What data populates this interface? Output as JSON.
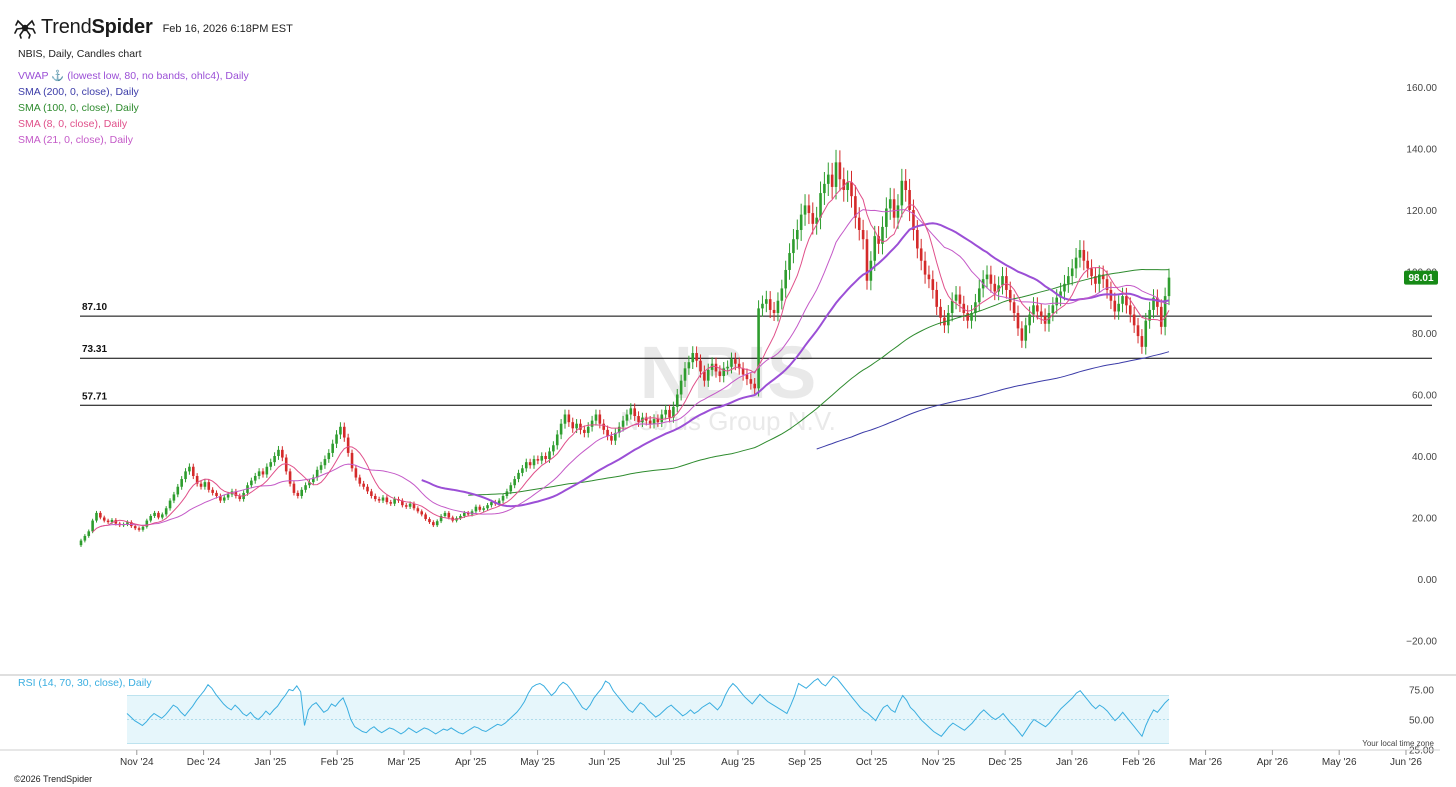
{
  "header": {
    "brand_light": "Trend",
    "brand_bold_part": "Spider",
    "datetime": "Feb 16, 2026 6:18PM EST"
  },
  "chart_title": "NBIS, Daily, Candles chart",
  "indicators": [
    {
      "label": "VWAP ⚓ (lowest low, 80, no bands, ohlc4), Daily",
      "color": "#9b4fd6"
    },
    {
      "label": "SMA (200, 0, close), Daily",
      "color": "#3c3ca8"
    },
    {
      "label": "SMA (100, 0, close), Daily",
      "color": "#2e8b2e"
    },
    {
      "label": "SMA (8, 0, close), Daily",
      "color": "#e0508a"
    },
    {
      "label": "SMA (21, 0, close), Daily",
      "color": "#c45ac8"
    }
  ],
  "watermark": {
    "symbol": "NBIS",
    "name": "Nebius Group N.V."
  },
  "price_badge": "98.01",
  "rsi_label": "RSI (14, 70, 30, close), Daily",
  "footer": "©2026 TrendSpider",
  "timezone_note": "Your local time zone",
  "colors": {
    "up": "#2e9d2e",
    "down": "#d42a2a",
    "rsi": "#3aaee0",
    "rsi_band": "#e6f6fb",
    "badge": "#168a16"
  },
  "chart_data": {
    "type": "candlestick",
    "y_ticks": [
      160,
      140,
      120,
      100,
      80,
      60,
      40,
      20,
      0,
      -20
    ],
    "y_tick_labels": [
      "160.00",
      "140.00",
      "120.00",
      "100.00",
      "80.00",
      "60.00",
      "40.00",
      "20.00",
      "0.00",
      "−20.00"
    ],
    "x_labels": [
      "Nov '24",
      "Dec '24",
      "Jan '25",
      "Feb '25",
      "Mar '25",
      "Apr '25",
      "May '25",
      "Jun '25",
      "Jul '25",
      "Aug '25",
      "Sep '25",
      "Oct '25",
      "Nov '25",
      "Dec '25",
      "Jan '26",
      "Feb '26",
      "Mar '26",
      "Apr '26",
      "May '26",
      "Jun '26"
    ],
    "x_label_months": [
      0,
      1,
      2,
      3,
      4,
      5,
      6,
      7,
      8,
      9,
      10,
      11,
      12,
      13,
      14,
      15,
      16,
      17,
      18,
      19
    ],
    "first_month_offset": 0.85,
    "horizontal_levels": [
      {
        "label": "87.10",
        "value": 85.5
      },
      {
        "label": "73.31",
        "value": 71.8
      },
      {
        "label": "57.71",
        "value": 56.5
      }
    ],
    "last_price": 98.01,
    "rsi_ticks": [
      75,
      50,
      25
    ],
    "rsi_tick_labels": [
      "75.00",
      "50.00",
      "25.00"
    ],
    "rsi_band": [
      30,
      70
    ],
    "closes": [
      12.5,
      14,
      15.5,
      19,
      21.5,
      20,
      19,
      18.5,
      19.2,
      18,
      17.5,
      17.8,
      18.5,
      17.2,
      16.5,
      16,
      17,
      19,
      20.5,
      21.5,
      20,
      21,
      23,
      25.5,
      27.5,
      30,
      32.5,
      35,
      36.5,
      33.5,
      31,
      30,
      31.5,
      29,
      28,
      27,
      25.5,
      26.5,
      27.5,
      28.5,
      27,
      26,
      28,
      30.5,
      32,
      33.5,
      35,
      34,
      36.5,
      38,
      40,
      42,
      39.5,
      35,
      31,
      28,
      27,
      29,
      30.5,
      31.5,
      33,
      35.5,
      37,
      39,
      41,
      44,
      47,
      49.5,
      46,
      41,
      36,
      33,
      31,
      30,
      28.5,
      27,
      26,
      25.5,
      26.5,
      25,
      24.5,
      26,
      25.5,
      24,
      23.5,
      24.5,
      23,
      22,
      21,
      19.5,
      18.5,
      17.5,
      18.8,
      20.5,
      21.5,
      20,
      19,
      19.8,
      20.5,
      21.5,
      21,
      22,
      23.5,
      22.5,
      23,
      24,
      25,
      24.5,
      25.5,
      27,
      28.5,
      30.5,
      32.5,
      34.5,
      36,
      38,
      37,
      39,
      38.5,
      40,
      39,
      41.5,
      43.5,
      47,
      50.5,
      53.5,
      51,
      49,
      50.5,
      48.5,
      47.5,
      49.5,
      51.5,
      53.5,
      50.5,
      48.5,
      46.5,
      45,
      47.5,
      49.5,
      51.5,
      53.5,
      55.5,
      53,
      51,
      52.5,
      51.5,
      50.5,
      52,
      51,
      53.5,
      55,
      52.5,
      56,
      60,
      64.5,
      68.5,
      70.5,
      73.5,
      71,
      67.5,
      64.5,
      68,
      70,
      67.5,
      66,
      68.5,
      69,
      71.5,
      70,
      68.5,
      66.5,
      65,
      63.5,
      62,
      88,
      89.5,
      91,
      87.5,
      86.5,
      90.5,
      94.5,
      100.5,
      106,
      110.5,
      113.5,
      118.5,
      121.5,
      119,
      115.5,
      117.5,
      125.5,
      128.5,
      131.5,
      127.5,
      135.5,
      130,
      126.5,
      129,
      124.5,
      117.5,
      113.5,
      110.5,
      97,
      103.5,
      111.5,
      109,
      114.5,
      120.5,
      123.5,
      117.5,
      121.5,
      129.5,
      126.5,
      120,
      113.5,
      107.5,
      103.5,
      99,
      97.5,
      94,
      88.5,
      85,
      82.5,
      86.5,
      90.5,
      92.5,
      89.5,
      86.5,
      84,
      86.5,
      90,
      94.5,
      97.5,
      99,
      96,
      93.5,
      95.5,
      98.5,
      94,
      90,
      86.5,
      81.5,
      77.5,
      82.5,
      86,
      89,
      87,
      85.5,
      83,
      86.5,
      89,
      91.5,
      93.5,
      96,
      98.5,
      101,
      104.5,
      107,
      103.5,
      101,
      98.5,
      96,
      99,
      97.5,
      94,
      90.5,
      87,
      89.5,
      92,
      89,
      86,
      82.5,
      79,
      75.5,
      84,
      87.5,
      91.5,
      88.5,
      82,
      92,
      98.01
    ],
    "rsi": [
      55,
      52,
      49,
      47,
      45,
      48,
      52,
      55,
      53,
      51,
      54,
      58,
      62,
      60,
      56,
      53,
      57,
      61,
      66,
      70,
      74,
      79,
      76,
      71,
      67,
      63,
      60,
      58,
      62,
      59,
      55,
      53,
      56,
      52,
      50,
      53,
      57,
      54,
      58,
      61,
      66,
      70,
      75,
      74,
      78,
      73,
      45,
      58,
      62,
      64,
      60,
      56,
      58,
      63,
      61,
      65,
      68,
      60,
      50,
      44,
      42,
      40,
      39,
      42,
      44,
      41,
      39,
      41,
      43,
      42,
      40,
      38,
      40,
      43,
      41,
      39,
      41,
      43,
      42,
      40,
      38,
      40,
      42,
      41,
      43,
      41,
      39,
      38,
      40,
      42,
      44,
      43,
      41,
      40,
      42,
      44,
      46,
      45,
      47,
      50,
      53,
      56,
      60,
      65,
      72,
      77,
      79,
      80,
      78,
      74,
      70,
      73,
      78,
      81,
      79,
      75,
      70,
      65,
      60,
      58,
      62,
      68,
      72,
      76,
      82,
      80,
      74,
      70,
      66,
      62,
      58,
      56,
      60,
      64,
      62,
      58,
      55,
      52,
      54,
      57,
      60,
      62,
      59,
      56,
      53,
      55,
      58,
      55,
      57,
      60,
      62,
      64,
      61,
      58,
      62,
      70,
      76,
      80,
      77,
      73,
      69,
      66,
      63,
      67,
      71,
      68,
      65,
      63,
      61,
      59,
      57,
      55,
      62,
      70,
      80,
      78,
      76,
      79,
      82,
      84,
      80,
      78,
      82,
      86,
      84,
      80,
      76,
      72,
      68,
      64,
      60,
      57,
      55,
      52,
      49,
      55,
      60,
      62,
      58,
      56,
      64,
      70,
      66,
      60,
      57,
      53,
      49,
      46,
      43,
      40,
      38,
      36,
      40,
      44,
      47,
      45,
      43,
      41,
      44,
      47,
      51,
      55,
      58,
      55,
      52,
      50,
      52,
      55,
      51,
      47,
      44,
      40,
      36,
      41,
      46,
      50,
      48,
      46,
      44,
      47,
      51,
      55,
      59,
      62,
      65,
      68,
      72,
      74,
      70,
      66,
      62,
      59,
      62,
      60,
      57,
      53,
      49,
      52,
      56,
      52,
      48,
      44,
      40,
      36,
      45,
      52,
      58,
      56,
      60,
      64,
      67
    ]
  }
}
